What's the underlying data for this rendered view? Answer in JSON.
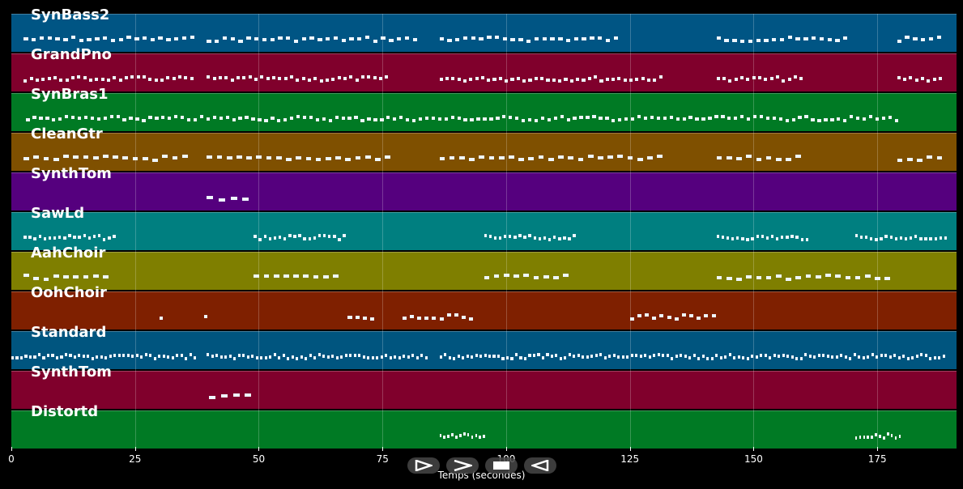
{
  "chart_data": {
    "type": "piano-roll",
    "title": "",
    "xlabel": "Temps (secondes)",
    "xlim": [
      0,
      191
    ],
    "xticks": [
      0,
      25,
      50,
      75,
      100,
      125,
      150,
      175
    ],
    "tracks": [
      {
        "name": "SynBass2",
        "color": "#005584",
        "segments": [
          [
            2.5,
            36.5,
            1.6
          ],
          [
            39.5,
            82,
            1.6
          ],
          [
            86.5,
            123,
            1.6
          ],
          [
            142.5,
            168.5,
            1.6
          ],
          [
            179,
            188,
            1.6
          ]
        ]
      },
      {
        "name": "GrandPno",
        "color": "#80002c",
        "segments": [
          [
            2.5,
            36.5,
            1.2
          ],
          [
            39.5,
            76,
            1.2
          ],
          [
            86.5,
            131.5,
            1.2
          ],
          [
            142.5,
            160,
            1.2
          ],
          [
            179,
            188,
            1.2
          ]
        ]
      },
      {
        "name": "SynBras1",
        "color": "#007a24",
        "segments": [
          [
            3,
            179.5,
            1.3
          ]
        ]
      },
      {
        "name": "CleanGtr",
        "color": "#7f5000",
        "segments": [
          [
            2.5,
            36.5,
            2.0
          ],
          [
            39.5,
            76,
            2.0
          ],
          [
            86.5,
            131.5,
            2.0
          ],
          [
            142.5,
            160,
            2.0
          ],
          [
            179,
            188,
            2.0
          ]
        ]
      },
      {
        "name": "SynthTom",
        "color": "#55007e",
        "segments": [
          [
            39.5,
            47.5,
            2.4
          ]
        ]
      },
      {
        "name": "SawLd",
        "color": "#007f80",
        "segments": [
          [
            2.5,
            21,
            1.0
          ],
          [
            49,
            67.5,
            1.0
          ],
          [
            95.5,
            114,
            1.0
          ],
          [
            142.5,
            161,
            1.0
          ],
          [
            170.5,
            189,
            1.0
          ]
        ]
      },
      {
        "name": "AahChoir",
        "color": "#7f7f00",
        "segments": [
          [
            2.5,
            20.5,
            2.0
          ],
          [
            49,
            66.5,
            2.0
          ],
          [
            95.5,
            113,
            2.0
          ],
          [
            142.5,
            178,
            2.0
          ]
        ]
      },
      {
        "name": "OohChoir",
        "color": "#7f2000",
        "segments": [
          [
            30,
            31,
            1.0
          ],
          [
            39,
            40,
            1.0
          ],
          [
            68,
            74,
            1.5
          ],
          [
            79,
            93,
            1.5
          ],
          [
            125,
            143,
            1.5
          ]
        ]
      },
      {
        "name": "Standard",
        "color": "#00557f",
        "segments": [
          [
            0,
            37.5,
            0.9
          ],
          [
            39.5,
            84,
            0.9
          ],
          [
            86.5,
            188.5,
            0.9
          ]
        ]
      },
      {
        "name": "SynthTom",
        "color": "#80002c",
        "segments": [
          [
            40,
            48.5,
            2.4
          ]
        ]
      },
      {
        "name": "Distortd",
        "color": "#007a24",
        "segments": [
          [
            86.5,
            95.5,
            0.8
          ],
          [
            170.5,
            179.5,
            0.8
          ]
        ]
      }
    ]
  },
  "controls": [
    {
      "name": "play-forward-icon"
    },
    {
      "name": "fast-forward-icon"
    },
    {
      "name": "stop-icon"
    },
    {
      "name": "rewind-icon"
    }
  ]
}
